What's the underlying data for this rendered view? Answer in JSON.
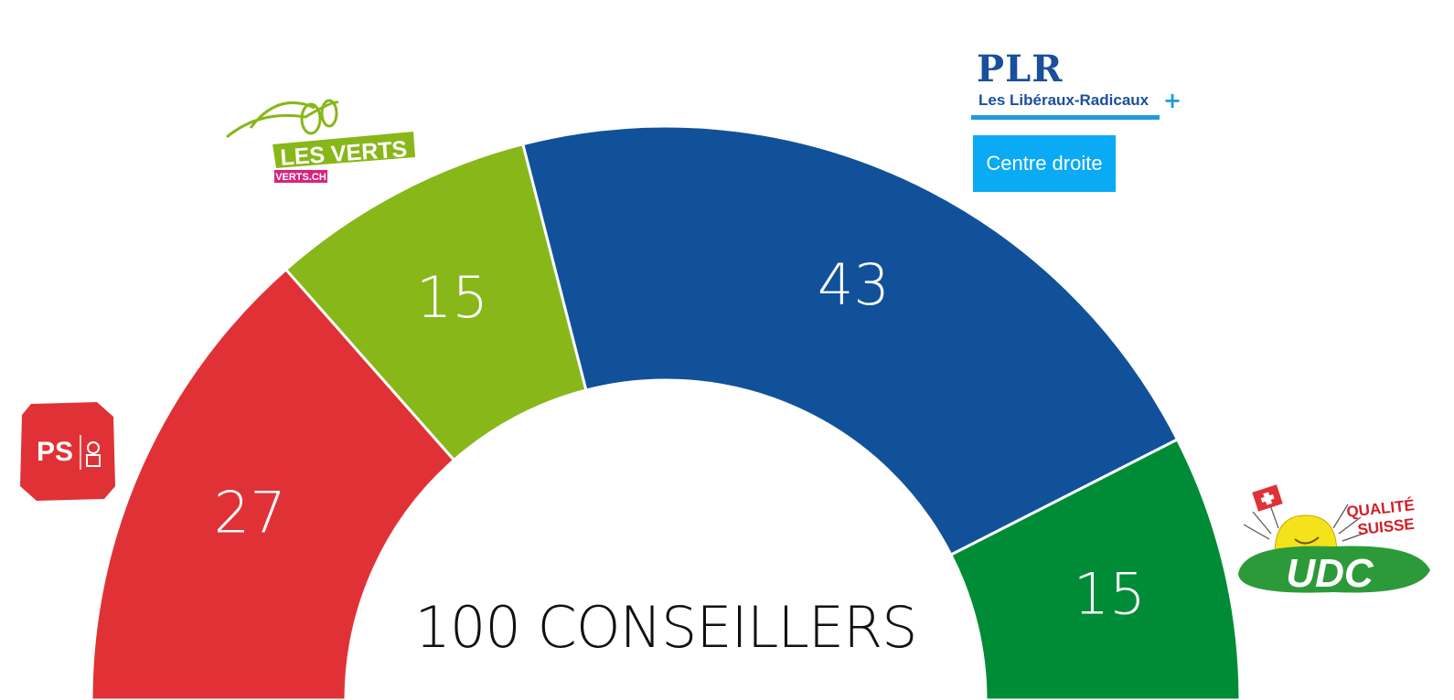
{
  "chart_data": {
    "type": "pie",
    "subtype": "half-donut",
    "total_label": "100 CONSEILLERS",
    "total": 100,
    "slices": [
      {
        "name": "PS",
        "value": 27,
        "color": "#e03236"
      },
      {
        "name": "LES VERTS",
        "value": 15,
        "color": "#88b719"
      },
      {
        "name": "PLR",
        "value": 43,
        "color": "#11519a"
      },
      {
        "name": "UDC",
        "value": 15,
        "color": "#008c36"
      }
    ]
  },
  "logos": {
    "ps": {
      "text": "PS"
    },
    "verts": {
      "text": "LES VERTS",
      "sub": "VERTS.CH"
    },
    "plr": {
      "title": "PLR",
      "sub": "Les Libéraux-Radicaux",
      "plus": "+"
    },
    "udc": {
      "text": "UDC",
      "tagline1": "QUALITÉ",
      "tagline2": "SUISSE"
    }
  },
  "badge": {
    "label": "Centre droite",
    "color": "#0aaaf4"
  }
}
